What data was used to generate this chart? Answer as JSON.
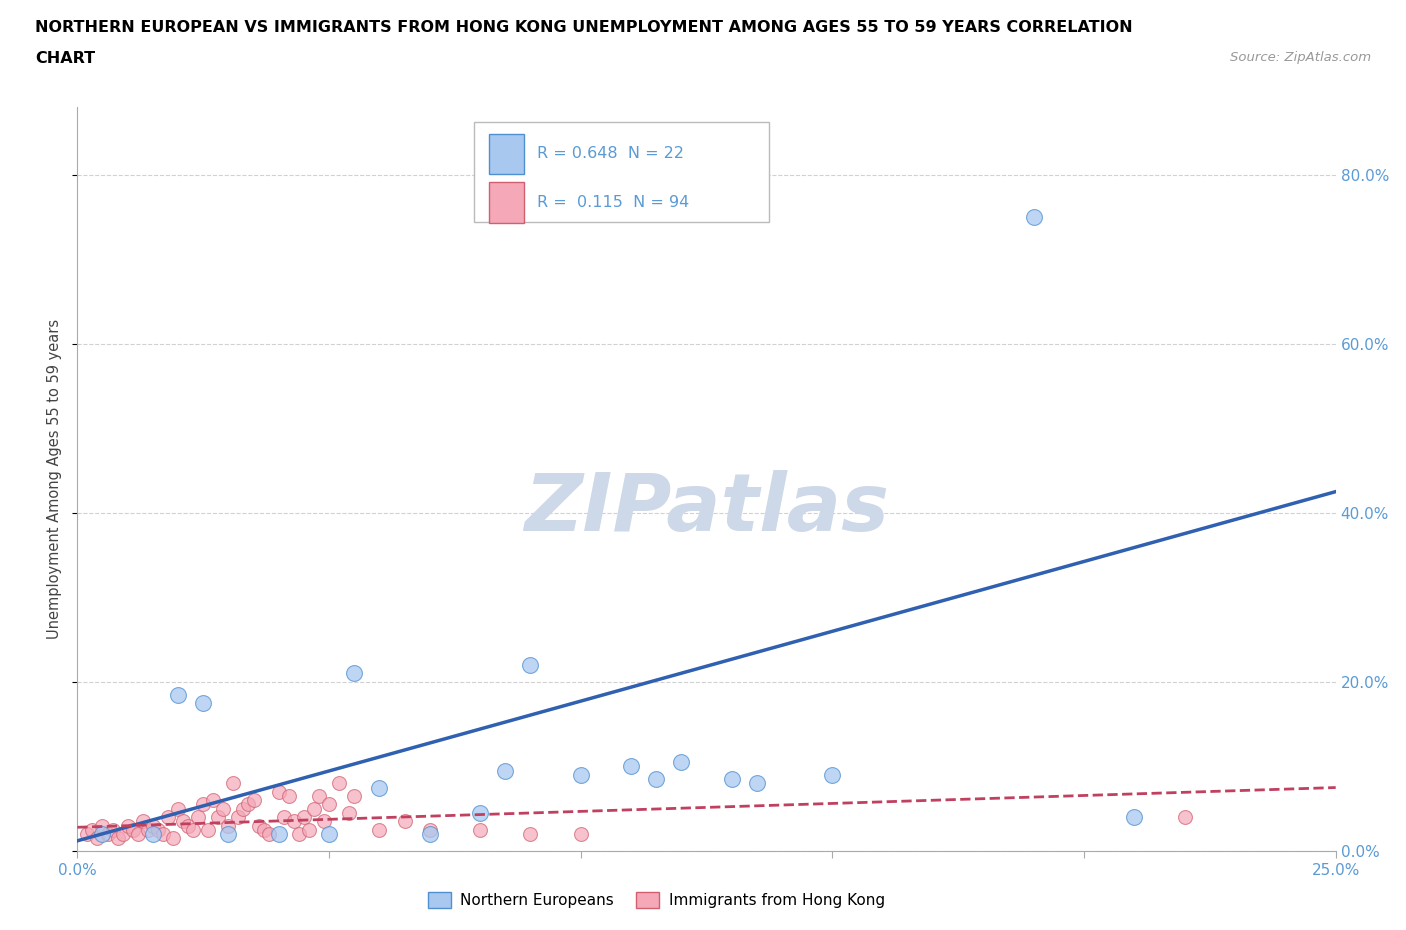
{
  "title_line1": "NORTHERN EUROPEAN VS IMMIGRANTS FROM HONG KONG UNEMPLOYMENT AMONG AGES 55 TO 59 YEARS CORRELATION",
  "title_line2": "CHART",
  "source_text": "Source: ZipAtlas.com",
  "ylabel": "Unemployment Among Ages 55 to 59 years",
  "watermark": "ZIPatlas",
  "xlim": [
    0.0,
    0.25
  ],
  "ylim": [
    0.0,
    0.88
  ],
  "xticks": [
    0.0,
    0.05,
    0.1,
    0.15,
    0.2,
    0.25
  ],
  "xticklabels": [
    "0.0%",
    "",
    "",
    "",
    "",
    "25.0%"
  ],
  "yticks": [
    0.0,
    0.2,
    0.4,
    0.6,
    0.8
  ],
  "yticklabels": [
    "0.0%",
    "20.0%",
    "40.0%",
    "60.0%",
    "80.0%"
  ],
  "blue_R": 0.648,
  "blue_N": 22,
  "pink_R": 0.115,
  "pink_N": 94,
  "legend_label_blue": "Northern Europeans",
  "legend_label_pink": "Immigrants from Hong Kong",
  "blue_color": "#a8c8f0",
  "pink_color": "#f4a8b8",
  "blue_edge_color": "#5090d0",
  "pink_edge_color": "#d06070",
  "blue_line_color": "#3060b0",
  "pink_line_color": "#c04060",
  "axis_color": "#5b9bd5",
  "title_color": "#000000",
  "grid_color": "#cccccc",
  "blue_line_x0": 0.0,
  "blue_line_y0": 0.012,
  "blue_line_x1": 0.25,
  "blue_line_y1": 0.425,
  "pink_line_x0": 0.0,
  "pink_line_y0": 0.028,
  "pink_line_x1": 0.25,
  "pink_line_y1": 0.075,
  "blue_x": [
    0.005,
    0.015,
    0.02,
    0.025,
    0.03,
    0.04,
    0.05,
    0.055,
    0.06,
    0.07,
    0.08,
    0.085,
    0.09,
    0.1,
    0.11,
    0.115,
    0.12,
    0.13,
    0.135,
    0.15,
    0.19,
    0.21
  ],
  "blue_y": [
    0.02,
    0.02,
    0.185,
    0.175,
    0.02,
    0.02,
    0.02,
    0.21,
    0.075,
    0.02,
    0.045,
    0.095,
    0.22,
    0.09,
    0.1,
    0.085,
    0.105,
    0.085,
    0.08,
    0.09,
    0.75,
    0.04
  ],
  "pink_x": [
    0.002,
    0.003,
    0.004,
    0.005,
    0.006,
    0.007,
    0.008,
    0.009,
    0.01,
    0.011,
    0.012,
    0.013,
    0.014,
    0.015,
    0.016,
    0.017,
    0.018,
    0.019,
    0.02,
    0.021,
    0.022,
    0.023,
    0.024,
    0.025,
    0.026,
    0.027,
    0.028,
    0.029,
    0.03,
    0.031,
    0.032,
    0.033,
    0.034,
    0.035,
    0.036,
    0.037,
    0.038,
    0.04,
    0.041,
    0.042,
    0.043,
    0.044,
    0.045,
    0.046,
    0.047,
    0.048,
    0.049,
    0.05,
    0.052,
    0.054,
    0.055,
    0.06,
    0.065,
    0.07,
    0.08,
    0.09,
    0.1,
    0.22
  ],
  "pink_y": [
    0.02,
    0.025,
    0.015,
    0.03,
    0.02,
    0.025,
    0.015,
    0.02,
    0.03,
    0.025,
    0.02,
    0.035,
    0.025,
    0.03,
    0.025,
    0.02,
    0.04,
    0.015,
    0.05,
    0.035,
    0.03,
    0.025,
    0.04,
    0.055,
    0.025,
    0.06,
    0.04,
    0.05,
    0.03,
    0.08,
    0.04,
    0.05,
    0.055,
    0.06,
    0.03,
    0.025,
    0.02,
    0.07,
    0.04,
    0.065,
    0.035,
    0.02,
    0.04,
    0.025,
    0.05,
    0.065,
    0.035,
    0.055,
    0.08,
    0.045,
    0.065,
    0.025,
    0.035,
    0.025,
    0.025,
    0.02,
    0.02,
    0.04
  ]
}
